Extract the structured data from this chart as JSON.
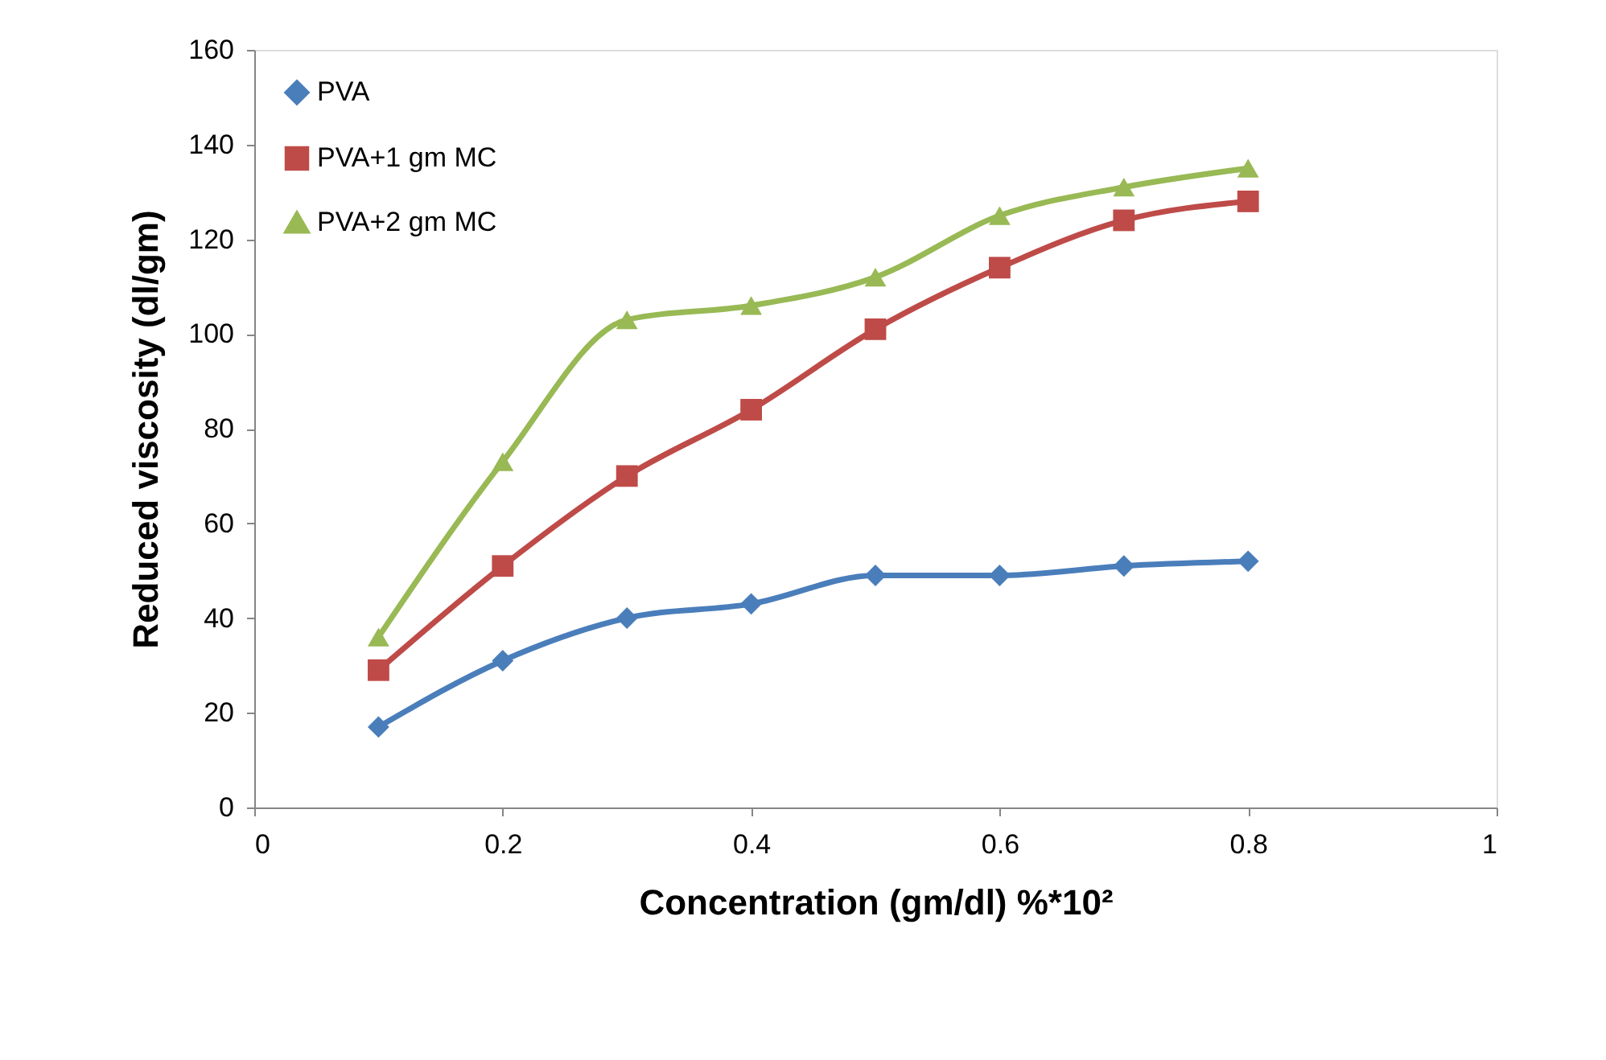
{
  "chart_data": {
    "type": "line",
    "xlabel": "Concentration (gm/dl) %*10²",
    "ylabel": "Reduced viscosity (dl/gm)",
    "x": [
      0.1,
      0.2,
      0.3,
      0.4,
      0.5,
      0.6,
      0.7,
      0.8
    ],
    "series": [
      {
        "name": "PVA",
        "color": "#4a7ebb",
        "marker": "diamond",
        "values": [
          17,
          31,
          40,
          43,
          49,
          49,
          51,
          52
        ]
      },
      {
        "name": "PVA+1 gm MC",
        "color": "#be4b48",
        "marker": "square",
        "values": [
          29,
          51,
          70,
          84,
          101,
          114,
          124,
          128
        ]
      },
      {
        "name": "PVA+2 gm MC",
        "color": "#98b954",
        "marker": "triangle",
        "values": [
          36,
          73,
          103,
          106,
          112,
          125,
          131,
          135
        ]
      }
    ],
    "xlim": [
      0,
      1
    ],
    "xticks": [
      0,
      0.2,
      0.4,
      0.6,
      0.8,
      1
    ],
    "ylim": [
      0,
      160
    ],
    "yticks": [
      0,
      20,
      40,
      60,
      80,
      100,
      120,
      140,
      160
    ],
    "grid": false,
    "legend": "top left",
    "line_style": "solid"
  }
}
